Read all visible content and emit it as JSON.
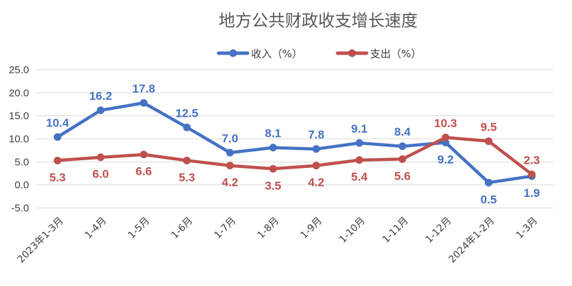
{
  "chart_data": {
    "type": "line",
    "title": "地方公共财政收支增长速度",
    "categories": [
      "2023年1-3月",
      "1-4月",
      "1-5月",
      "1-6月",
      "1-7月",
      "1-8月",
      "1-9月",
      "1-10月",
      "1-11月",
      "1-12月",
      "2024年1-2月",
      "1-3月"
    ],
    "series": [
      {
        "name": "收入（%）",
        "color": "#4472C4",
        "values": [
          10.4,
          16.2,
          17.8,
          12.5,
          7.0,
          8.1,
          7.8,
          9.1,
          8.4,
          9.2,
          0.5,
          1.9
        ]
      },
      {
        "name": "支出（%）",
        "color": "#C0504D",
        "values": [
          5.3,
          6.0,
          6.6,
          5.3,
          4.2,
          3.5,
          4.2,
          5.4,
          5.6,
          10.3,
          9.5,
          2.3
        ]
      }
    ],
    "data_labels": [
      [
        "10.4",
        "16.2",
        "17.8",
        "12.5",
        "7.0",
        "8.1",
        "7.8",
        "9.1",
        "8.4",
        "9.2",
        "0.5",
        "1.9"
      ],
      [
        "5.3",
        "6.0",
        "6.6",
        "5.3",
        "4.2",
        "3.5",
        "4.2",
        "5.4",
        "5.6",
        "10.3",
        "9.5",
        "2.3"
      ]
    ],
    "ylim": [
      -5.0,
      25.0
    ],
    "yticks": [
      "25.0",
      "20.0",
      "15.0",
      "10.0",
      "5.0",
      "0.0",
      "-5.0"
    ],
    "ytick_values": [
      25,
      20,
      15,
      10,
      5,
      0,
      -5
    ],
    "grid": true,
    "legend_position": "top-center"
  }
}
